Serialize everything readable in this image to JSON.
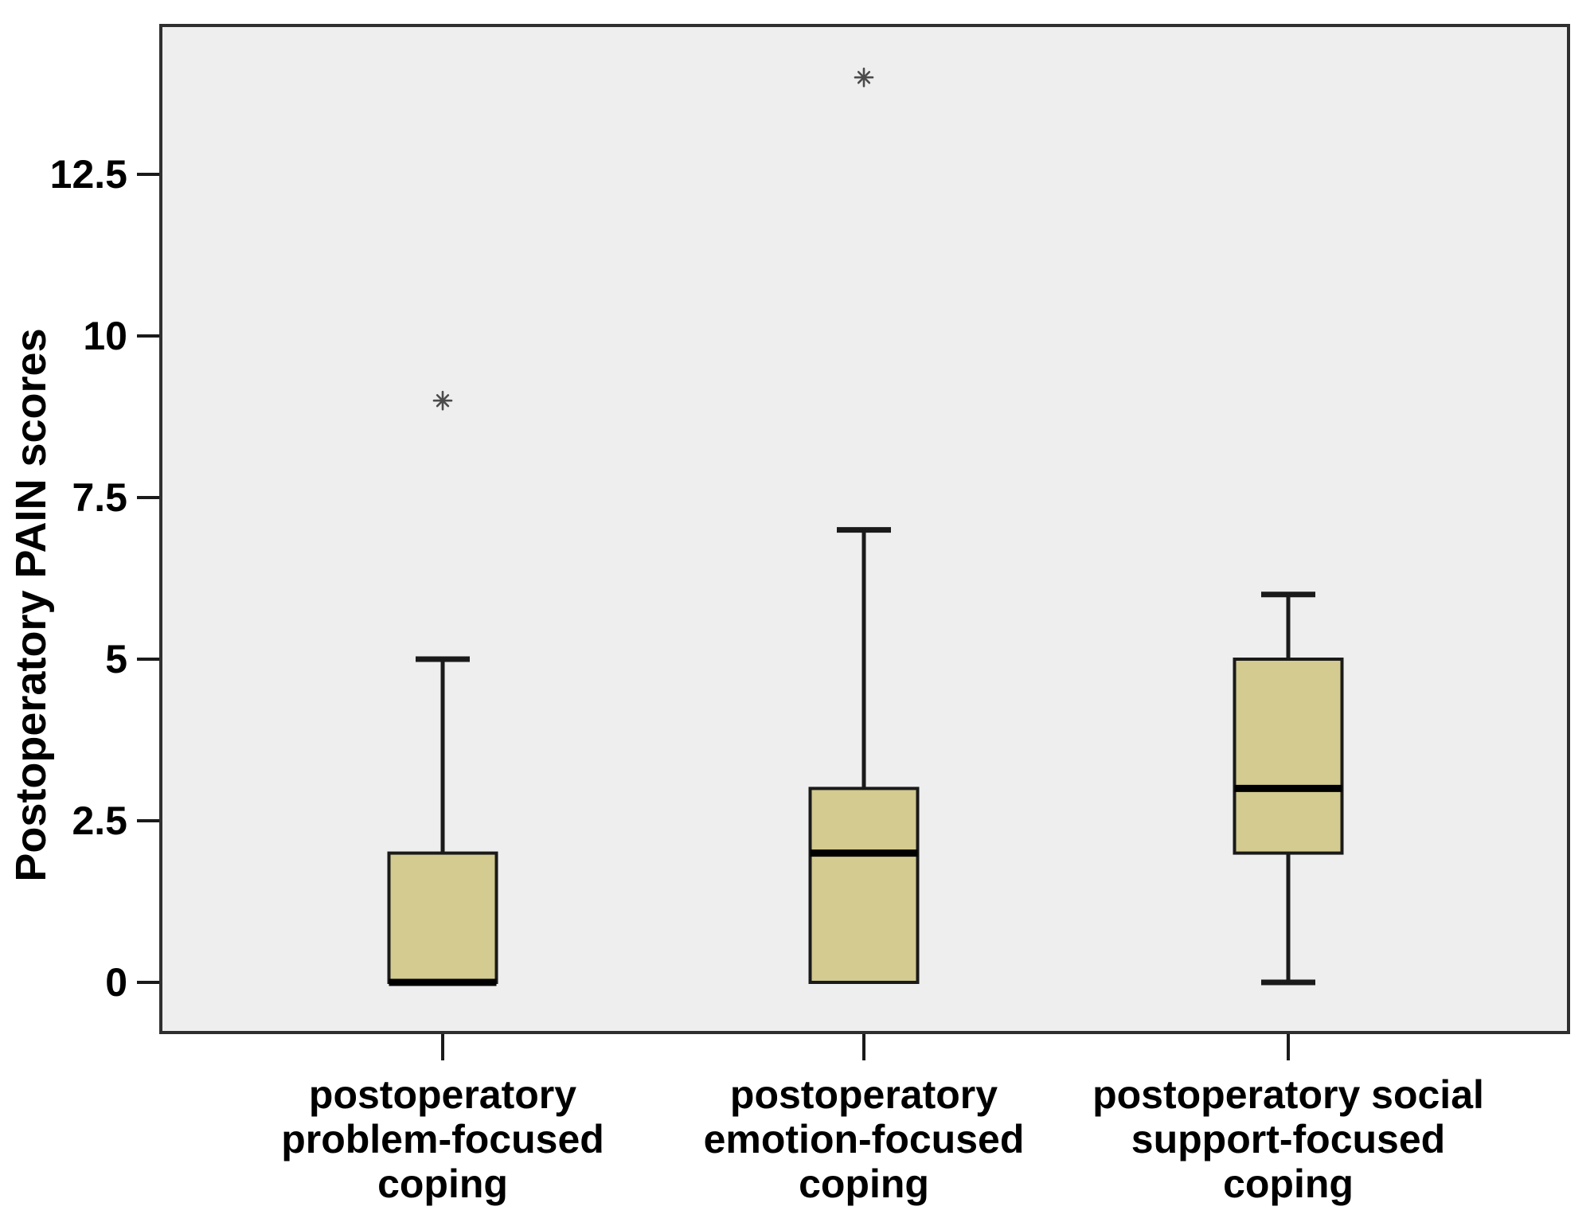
{
  "chart_data": {
    "type": "boxplot",
    "title": "",
    "xlabel": "",
    "ylabel": "Postoperatory PAIN scores",
    "ylim": [
      -0.8,
      14.8
    ],
    "yticks": [
      0,
      2.5,
      5,
      7.5,
      10,
      12.5
    ],
    "ytick_labels": [
      "0",
      "2.5",
      "5",
      "7.5",
      "10",
      "12.5"
    ],
    "grid": false,
    "legend": "none",
    "colors": {
      "plot_background": "#eeeeee",
      "box_fill": "#d3cb8f",
      "box_stroke": "#1a1a1a",
      "frame_stroke": "#2f2f2f",
      "median_stroke": "#000000",
      "outlier": "#4b4b4b"
    },
    "categories": [
      {
        "lines": [
          "postoperatory",
          "problem-focused",
          "coping"
        ]
      },
      {
        "lines": [
          "postoperatory",
          "emotion-focused",
          "coping"
        ]
      },
      {
        "lines": [
          "postoperatory social",
          "support-focused",
          "coping"
        ]
      }
    ],
    "series": [
      {
        "name": "postoperatory problem-focused coping",
        "whisker_low": 0,
        "q1": 0,
        "median": 0,
        "q3": 2,
        "whisker_high": 5,
        "outliers": [
          9
        ]
      },
      {
        "name": "postoperatory emotion-focused coping",
        "whisker_low": 0,
        "q1": 0,
        "median": 2,
        "q3": 3,
        "whisker_high": 7,
        "outliers": [
          14
        ]
      },
      {
        "name": "postoperatory social support-focused coping",
        "whisker_low": 0,
        "q1": 2,
        "median": 3,
        "q3": 5,
        "whisker_high": 6,
        "outliers": []
      }
    ]
  }
}
